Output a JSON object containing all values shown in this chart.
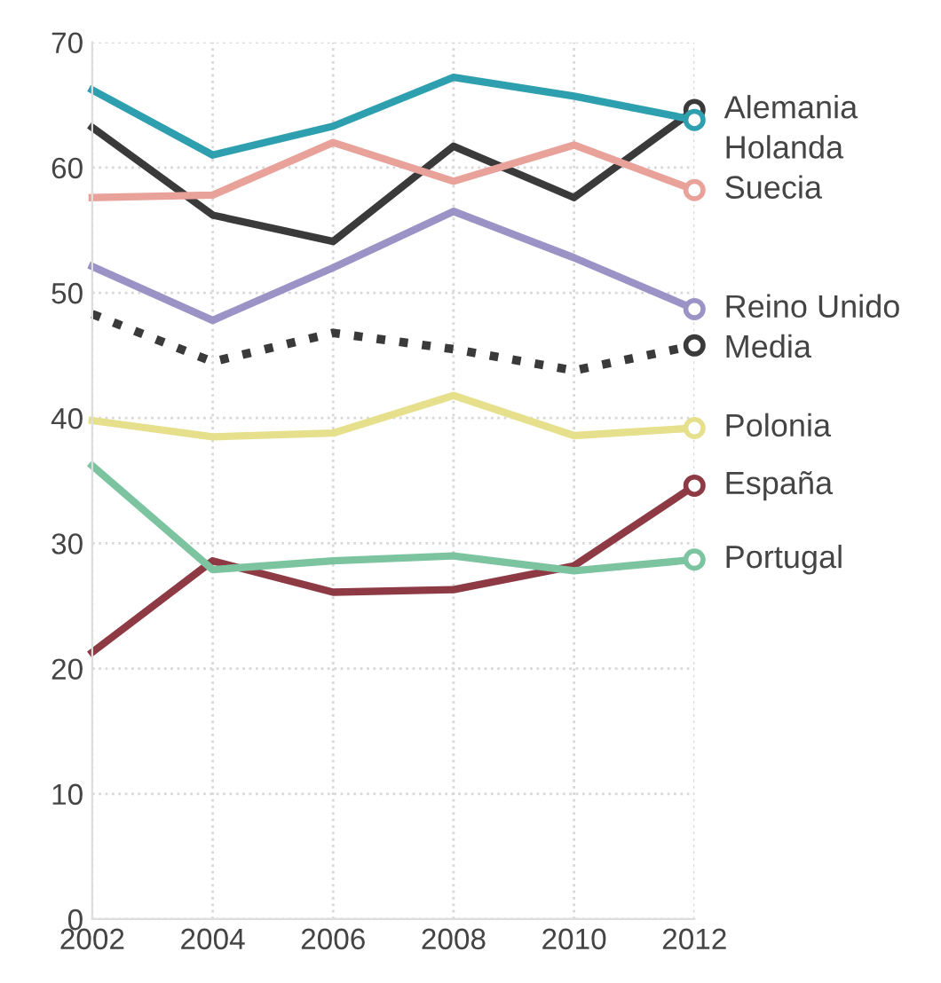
{
  "chart_data": {
    "type": "line",
    "x": [
      2002,
      2004,
      2006,
      2008,
      2010,
      2012
    ],
    "series": [
      {
        "name": "Alemania",
        "color": "#3a3a3a",
        "values": [
          63.2,
          56.2,
          54.1,
          61.7,
          57.6,
          64.6
        ]
      },
      {
        "name": "Holanda",
        "color": "#2e9fae",
        "values": [
          66.2,
          61.0,
          63.3,
          67.2,
          65.7,
          63.8
        ]
      },
      {
        "name": "Suecia",
        "color": "#e8a29a",
        "values": [
          57.6,
          57.8,
          62.0,
          58.9,
          61.8,
          58.2
        ]
      },
      {
        "name": "Reino Unido",
        "color": "#9b93c6",
        "values": [
          52.1,
          47.8,
          52.0,
          56.5,
          52.8,
          48.7
        ]
      },
      {
        "name": "Media",
        "color": "#3a3a3a",
        "line_style": "dotted",
        "values": [
          48.3,
          44.5,
          46.8,
          45.5,
          43.8,
          45.8
        ]
      },
      {
        "name": "Polonia",
        "color": "#e6e08c",
        "values": [
          39.8,
          38.5,
          38.8,
          41.8,
          38.6,
          39.2
        ]
      },
      {
        "name": "España",
        "color": "#8e3a44",
        "values": [
          21.3,
          28.6,
          26.1,
          26.3,
          28.2,
          34.6
        ]
      },
      {
        "name": "Portugal",
        "color": "#7cc4a0",
        "values": [
          36.2,
          27.9,
          28.6,
          29.0,
          27.8,
          28.7
        ]
      }
    ],
    "xlim": [
      2002,
      2012
    ],
    "ylim": [
      0,
      70
    ],
    "xticks": [
      2002,
      2004,
      2006,
      2008,
      2010,
      2012
    ],
    "yticks": [
      0,
      10,
      20,
      30,
      40,
      50,
      60,
      70
    ],
    "grid": true,
    "marker": "none",
    "line_style": "solid",
    "legend": false
  }
}
